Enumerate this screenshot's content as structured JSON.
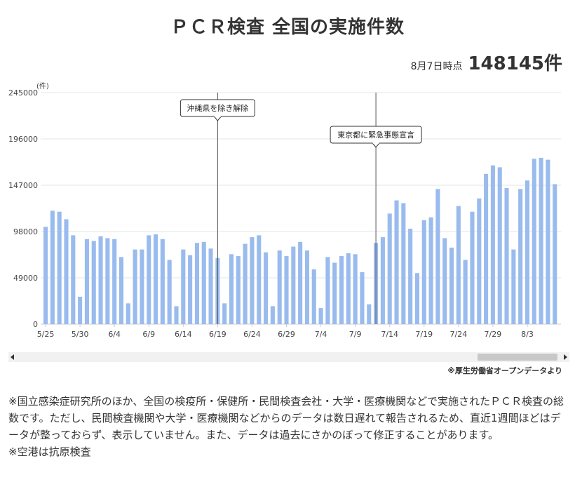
{
  "title": "ＰＣＲ検査 全国の実施件数",
  "as_of": {
    "date": "8月7日時点",
    "total": "148145件"
  },
  "source": "※厚生労働省オープンデータより",
  "notes": [
    "※国立感染症研究所のほか、全国の検疫所・保健所・民間検査会社・大学・医療機関などで実施されたＰＣＲ検査の総数です。ただし、民間検査機関や大学・医療機関などからのデータは数日遅れて報告されるため、直近1週間ほどはデータが整っておらず、表示していません。また、データは過去にさかのぼって修正することがあります。",
    "※空港は抗原検査"
  ],
  "colors": {
    "bar": "#99bbee",
    "grid": "#e6e6e6",
    "line": "#555555"
  },
  "chart_data": {
    "type": "bar",
    "ylabel": "(件)",
    "ylim": [
      0,
      245000
    ],
    "yticks": [
      0,
      49000,
      98000,
      147000,
      196000,
      245000
    ],
    "ytick_labels": [
      "0",
      "49000",
      "98000",
      "147000",
      "196000",
      "245000"
    ],
    "x_start": "5/25",
    "tick_labels": [
      "5/25",
      "5/30",
      "6/4",
      "6/9",
      "6/14",
      "6/19",
      "6/24",
      "6/29",
      "7/4",
      "7/9",
      "7/14",
      "7/19",
      "7/24",
      "7/29",
      "8/3"
    ],
    "values": [
      103000,
      120000,
      119000,
      111000,
      94000,
      29000,
      90000,
      88000,
      93000,
      91000,
      90000,
      71000,
      22000,
      79000,
      79000,
      94000,
      95000,
      90000,
      68000,
      19000,
      79000,
      73000,
      86000,
      87000,
      80000,
      70000,
      22000,
      74000,
      72000,
      85000,
      92000,
      94000,
      76000,
      19000,
      78000,
      72000,
      82000,
      87000,
      78000,
      58000,
      17000,
      71000,
      65000,
      72000,
      75000,
      74000,
      55000,
      21000,
      86000,
      92000,
      117000,
      131000,
      128000,
      101000,
      54000,
      110000,
      113000,
      143000,
      91000,
      81000,
      125000,
      68000,
      119000,
      133000,
      159000,
      168000,
      166000,
      144000,
      79000,
      143000,
      152000,
      175000,
      176000,
      174000,
      148145
    ],
    "annotations": [
      {
        "date": "6/19",
        "label": "沖縄県を除き解除"
      },
      {
        "date": "7/12",
        "label": "東京都に緊急事態宣言"
      }
    ]
  }
}
